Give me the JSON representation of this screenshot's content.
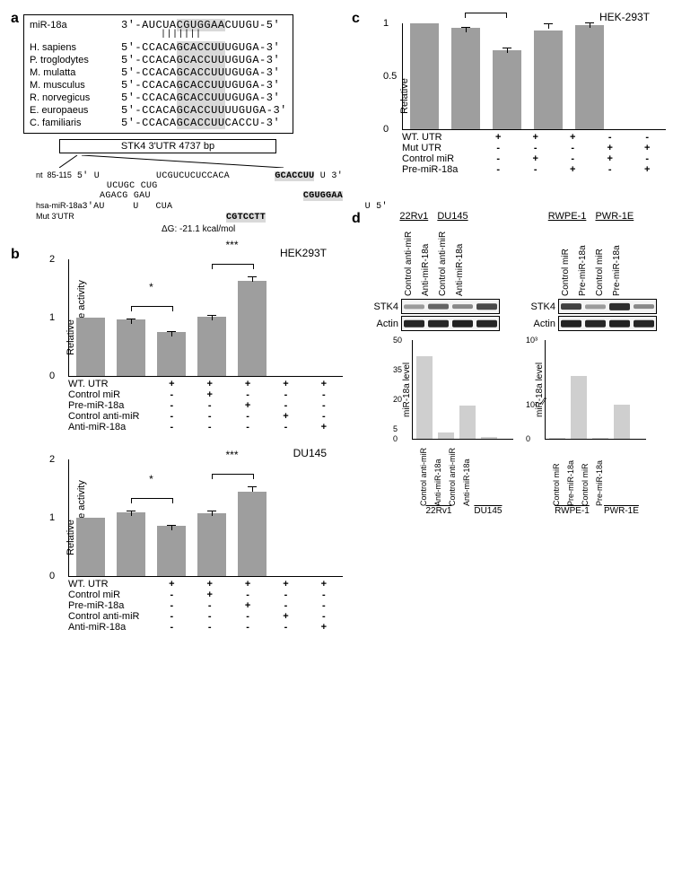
{
  "panelA": {
    "label": "a",
    "mirna_name": "miR-18a",
    "mirna_seq_5": "3'-AUCUA",
    "mirna_seed": "CGUGGAA",
    "mirna_seq_3": "CUUGU-5'",
    "species": [
      {
        "name": "H. sapiens",
        "pre": "5'-CCACA",
        "seed": "GCACCUU",
        "post": "UGUGA-3'"
      },
      {
        "name": "P. troglodytes",
        "pre": "5'-CCACA",
        "seed": "GCACCUU",
        "post": "UGUGA-3'"
      },
      {
        "name": "M. mulatta",
        "pre": "5'-CCACA",
        "seed": "GCACCUU",
        "post": "UGUGA-3'"
      },
      {
        "name": "M. musculus",
        "pre": "5'-CCACA",
        "seed": "GCACCUU",
        "post": "UGUGA-3'"
      },
      {
        "name": "R. norvegicus",
        "pre": "5'-CCACA",
        "seed": "GCACCUU",
        "post": "UGUGA-3'"
      },
      {
        "name": "E. europaeus",
        "pre": "5'-CCACA",
        "seed": "GCACCUU",
        "post": "UUGUGA-3'"
      },
      {
        "name": "C. familiaris",
        "pre": "5'-CCACA",
        "seed": "GCACCUU",
        "post": "CACCU-3'"
      }
    ],
    "utr_label": "STK4 3'UTR 4737 bp",
    "nt_range": "nt  85-115",
    "duplex_top": "5' U          UCGUCUCUCCACA        U 3'",
    "duplex_top2": "    UCUGC CUG              GCACCUU",
    "duplex_bot2": "    AGACG GAU              CGUGGAA",
    "duplex_bot": "3'AU     U   CUA                   U 5'",
    "hsa_label": "hsa-miR-18a",
    "mut_label": "Mut 3'UTR",
    "mut_seq": "CGTCCTT",
    "dG": "ΔG: -21.1 kcal/mol"
  },
  "panelB": {
    "label": "b",
    "ylabel": "Relative\nluciferase activity",
    "conditions": [
      "WT. UTR",
      "Control miR",
      "Pre-miR-18a",
      "Control anti-miR",
      "Anti-miR-18a"
    ],
    "hek": {
      "title": "HEK293T",
      "ylim": [
        0,
        2
      ],
      "ticks": [
        0,
        1,
        2
      ],
      "values": [
        1.0,
        0.97,
        0.75,
        1.02,
        1.63
      ],
      "errors": [
        0,
        0.02,
        0.02,
        0.02,
        0.08
      ],
      "matrix": [
        [
          "+",
          "+",
          "+",
          "+",
          "+"
        ],
        [
          "-",
          "+",
          "-",
          "-",
          "-"
        ],
        [
          "-",
          "-",
          "+",
          "-",
          "-"
        ],
        [
          "-",
          "-",
          "-",
          "+",
          "-"
        ],
        [
          "-",
          "-",
          "-",
          "-",
          "+"
        ]
      ],
      "sig": [
        {
          "from": 1,
          "to": 2,
          "text": "*"
        },
        {
          "from": 3,
          "to": 4,
          "text": "***"
        }
      ],
      "bar_color": "#9e9e9e"
    },
    "du145": {
      "title": "DU145",
      "ylim": [
        0,
        2
      ],
      "ticks": [
        0,
        1,
        2
      ],
      "values": [
        1.0,
        1.1,
        0.86,
        1.08,
        1.44
      ],
      "errors": [
        0,
        0.02,
        0.02,
        0.04,
        0.1
      ],
      "matrix": [
        [
          "+",
          "+",
          "+",
          "+",
          "+"
        ],
        [
          "-",
          "+",
          "-",
          "-",
          "-"
        ],
        [
          "-",
          "-",
          "+",
          "-",
          "-"
        ],
        [
          "-",
          "-",
          "-",
          "+",
          "-"
        ],
        [
          "-",
          "-",
          "-",
          "-",
          "+"
        ]
      ],
      "sig": [
        {
          "from": 1,
          "to": 2,
          "text": "*"
        },
        {
          "from": 3,
          "to": 4,
          "text": "***"
        }
      ],
      "bar_color": "#9e9e9e"
    }
  },
  "panelC": {
    "label": "c",
    "title": "HEK-293T",
    "ylabel": "Relative\nluciferase activity",
    "ylim": [
      0,
      1
    ],
    "ticks": [
      0,
      0.5,
      1
    ],
    "values": [
      1.0,
      0.96,
      0.75,
      0.93,
      0.98
    ],
    "errors": [
      0,
      0.01,
      0.02,
      0.07,
      0.03
    ],
    "conditions": [
      "WT. UTR",
      "Mut UTR",
      "Control miR",
      "Pre-miR-18a"
    ],
    "matrix": [
      [
        "+",
        "+",
        "+",
        "-",
        "-"
      ],
      [
        "-",
        "-",
        "-",
        "+",
        "+"
      ],
      [
        "-",
        "+",
        "-",
        "+",
        "-"
      ],
      [
        "-",
        "-",
        "+",
        "-",
        "+"
      ]
    ],
    "sig": [
      {
        "from": 1,
        "to": 2,
        "text": "*"
      }
    ],
    "bar_color": "#9e9e9e"
  },
  "panelD": {
    "label": "d",
    "left": {
      "groups": [
        "22Rv1",
        "DU145"
      ],
      "lane_labels": [
        "Control anti-miR",
        "Anti-miR-18a",
        "Control anti-miR",
        "Anti-miR-18a"
      ],
      "rows": [
        {
          "name": "STK4",
          "intensity": [
            0.25,
            0.55,
            0.35,
            0.7
          ]
        },
        {
          "name": "Actin",
          "intensity": [
            0.9,
            0.9,
            0.92,
            0.9
          ]
        }
      ],
      "mir_chart": {
        "ylabel": "miR-18a level",
        "ylim": [
          0,
          50
        ],
        "ticks": [
          0,
          5,
          20,
          35,
          50
        ],
        "values": [
          42,
          3,
          17,
          1
        ],
        "bar_color": "#cfcfcf"
      }
    },
    "right": {
      "groups": [
        "RWPE-1",
        "PWR-1E"
      ],
      "lane_labels": [
        "Control miR",
        "Pre-miR-18a",
        "Control miR",
        "Pre-miR-18a"
      ],
      "rows": [
        {
          "name": "STK4",
          "intensity": [
            0.75,
            0.25,
            0.85,
            0.35
          ]
        },
        {
          "name": "Actin",
          "intensity": [
            0.92,
            0.9,
            0.92,
            0.9
          ]
        }
      ],
      "mir_chart": {
        "ylabel": "miR-18a level",
        "ylim": [
          0,
          1000
        ],
        "ticks": [
          0,
          100,
          1000
        ],
        "values": [
          3,
          450,
          2,
          100
        ],
        "bar_color": "#cfcfcf",
        "break": true
      }
    }
  },
  "colors": {
    "bar": "#9e9e9e",
    "lightbar": "#cfcfcf",
    "seed_bg": "#d9d9d9"
  }
}
